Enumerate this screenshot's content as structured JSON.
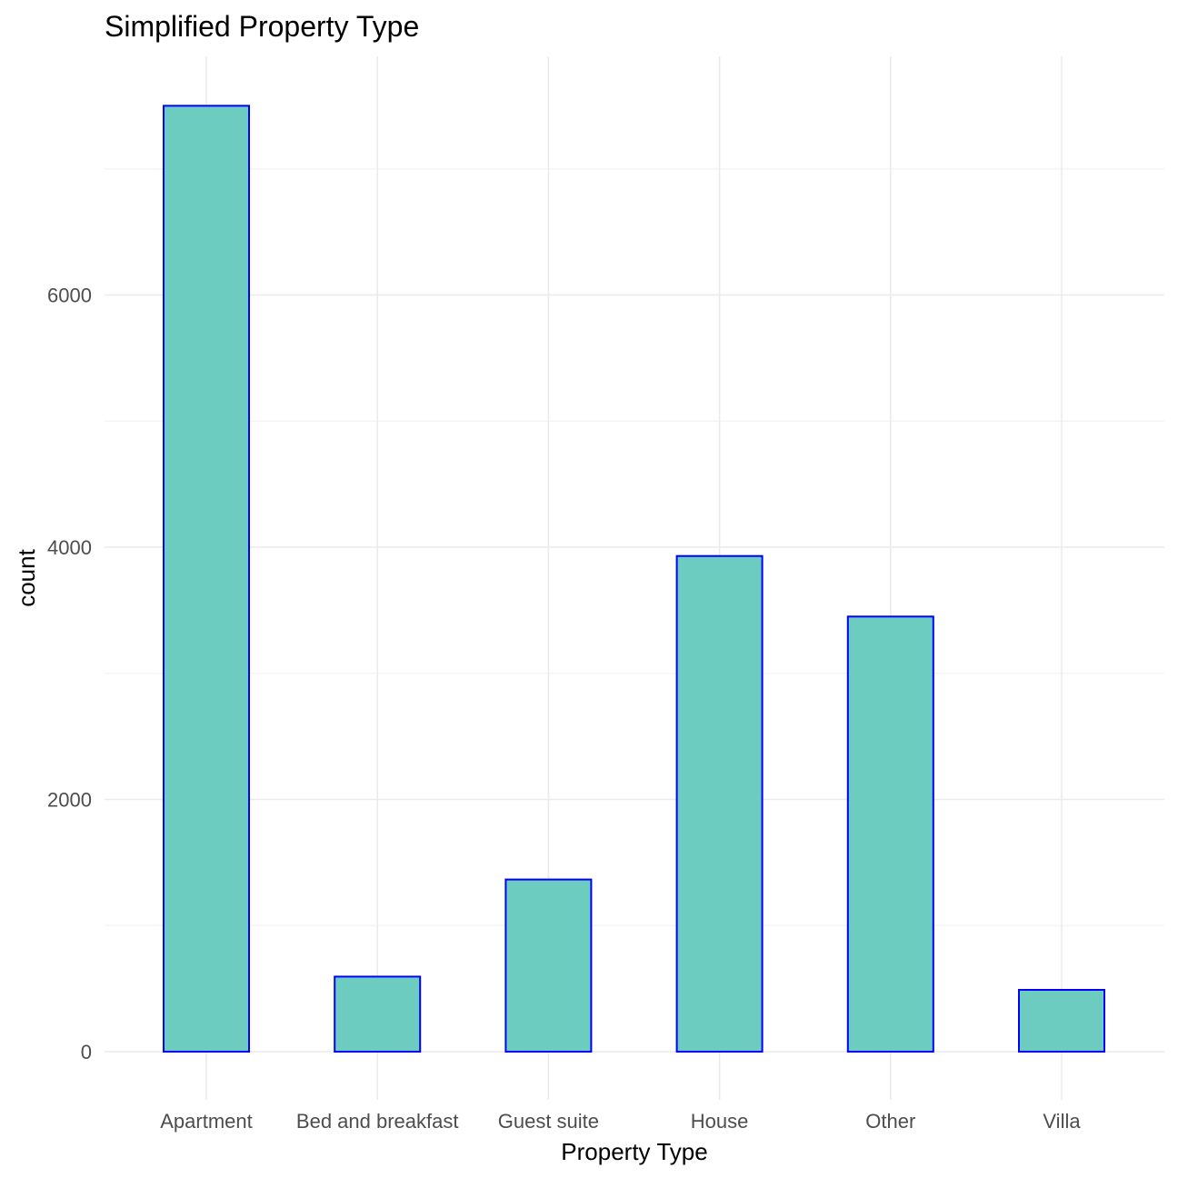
{
  "chart_data": {
    "type": "bar",
    "title": "Simplified Property Type",
    "xlabel": "Property Type",
    "ylabel": "count",
    "categories": [
      "Apartment",
      "Bed and breakfast",
      "Guest suite",
      "House",
      "Other",
      "Villa"
    ],
    "values": [
      7500,
      595,
      1365,
      3930,
      3450,
      490
    ],
    "ylim": [
      -300,
      7900
    ],
    "yticks": [
      0,
      2000,
      4000,
      6000
    ],
    "yminor": [
      1000,
      3000,
      5000,
      7000
    ],
    "grid": true,
    "legend": "none",
    "colors": {
      "bar_fill": "#6CCCC0",
      "bar_outline": "#0000FF"
    }
  }
}
